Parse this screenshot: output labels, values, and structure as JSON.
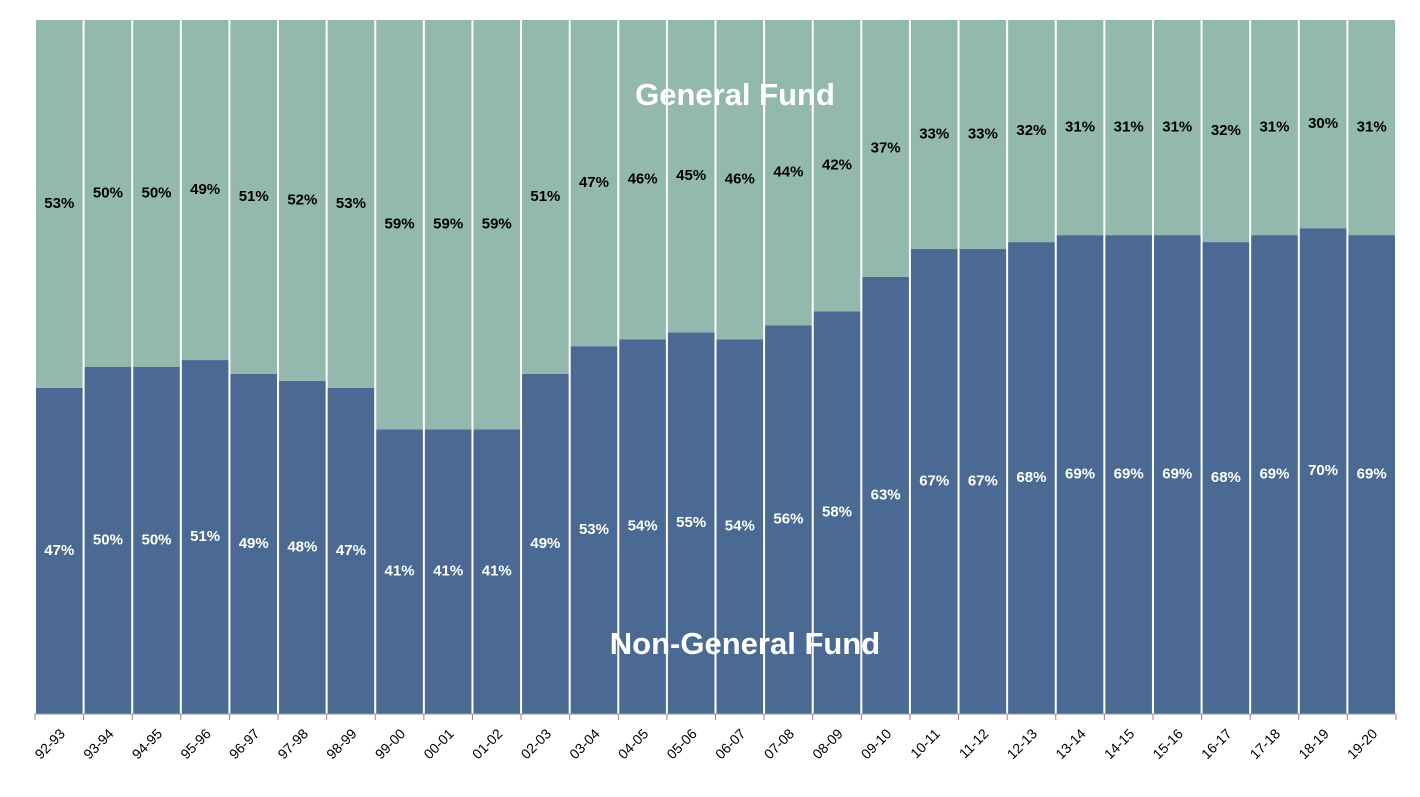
{
  "chart_data": {
    "type": "stacked_bar",
    "categories": [
      "92-93",
      "93-94",
      "94-95",
      "95-96",
      "96-97",
      "97-98",
      "98-99",
      "99-00",
      "00-01",
      "01-02",
      "02-03",
      "03-04",
      "04-05",
      "05-06",
      "06-07",
      "07-08",
      "08-09",
      "09-10",
      "10-11",
      "11-12",
      "12-13",
      "13-14",
      "14-15",
      "15-16",
      "16-17",
      "17-18",
      "18-19",
      "19-20"
    ],
    "series": [
      {
        "name": "Non-General Fund",
        "color": "#4a6a93",
        "values": [
          47,
          50,
          50,
          51,
          49,
          48,
          47,
          41,
          41,
          41,
          49,
          53,
          54,
          55,
          54,
          56,
          58,
          63,
          67,
          67,
          68,
          69,
          69,
          69,
          68,
          69,
          70,
          69
        ],
        "value_labels": [
          "47%",
          "50%",
          "50%",
          "51%",
          "49%",
          "48%",
          "47%",
          "41%",
          "41%",
          "41%",
          "49%",
          "53%",
          "54%",
          "55%",
          "54%",
          "56%",
          "58%",
          "63%",
          "67%",
          "67%",
          "68%",
          "69%",
          "69%",
          "69%",
          "68%",
          "69%",
          "70%",
          "69%"
        ]
      },
      {
        "name": "General Fund",
        "color": "#93b8ad",
        "values": [
          53,
          50,
          50,
          49,
          51,
          52,
          53,
          59,
          59,
          59,
          51,
          47,
          46,
          45,
          46,
          44,
          42,
          37,
          33,
          33,
          32,
          31,
          31,
          31,
          32,
          31,
          30,
          31
        ],
        "value_labels": [
          "53%",
          "50%",
          "50%",
          "49%",
          "51%",
          "52%",
          "53%",
          "59%",
          "59%",
          "59%",
          "51%",
          "47%",
          "46%",
          "45%",
          "46%",
          "44%",
          "42%",
          "37%",
          "33%",
          "33%",
          "32%",
          "31%",
          "31%",
          "31%",
          "32%",
          "31%",
          "30%",
          "31%"
        ]
      }
    ],
    "ylim": [
      0,
      100
    ]
  }
}
